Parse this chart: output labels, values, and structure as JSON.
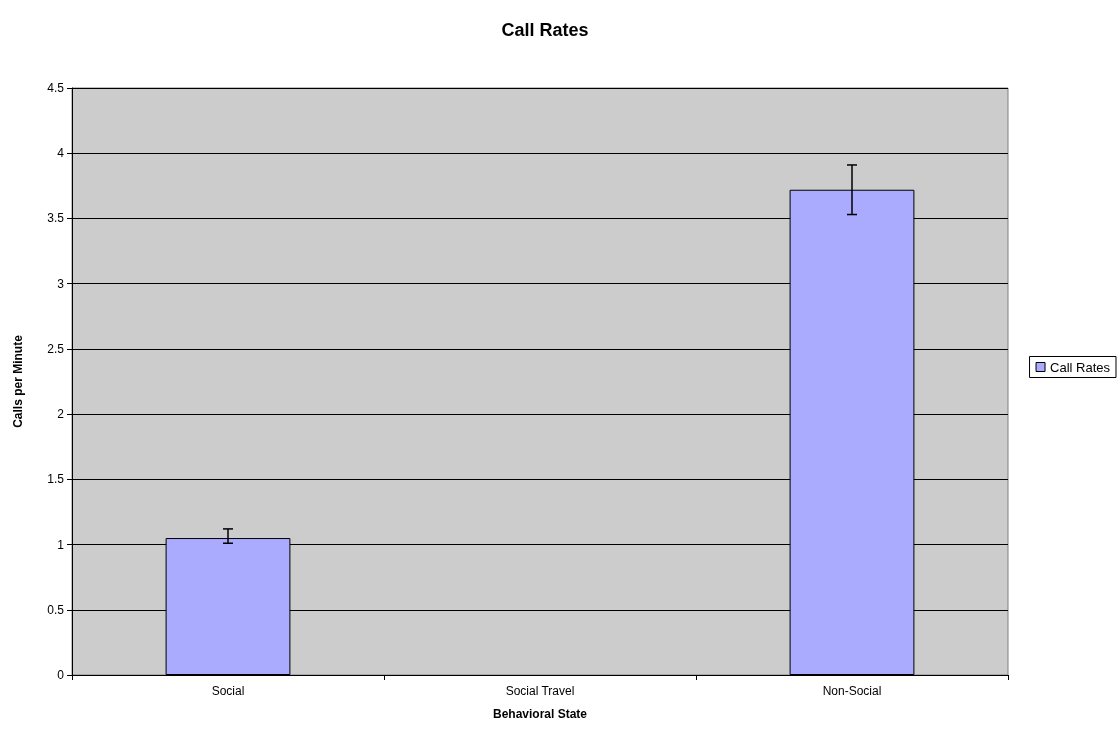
{
  "chart_data": {
    "type": "bar",
    "title": "Call Rates",
    "xlabel": "Behavioral State",
    "ylabel": "Calls per Minute",
    "categories": [
      "Social",
      "Social Travel",
      "Non-Social"
    ],
    "series": [
      {
        "name": "Call Rates",
        "color": "#aaaaff",
        "values": [
          1.05,
          null,
          3.72
        ],
        "errors": [
          [
            1.01,
            1.12
          ],
          null,
          0.19
        ]
      }
    ],
    "ylim": [
      0,
      4.5
    ],
    "yticks": [
      0,
      0.5,
      1,
      1.5,
      2,
      2.5,
      3,
      3.5,
      4,
      4.5
    ],
    "grid": "y",
    "legend": "right"
  }
}
